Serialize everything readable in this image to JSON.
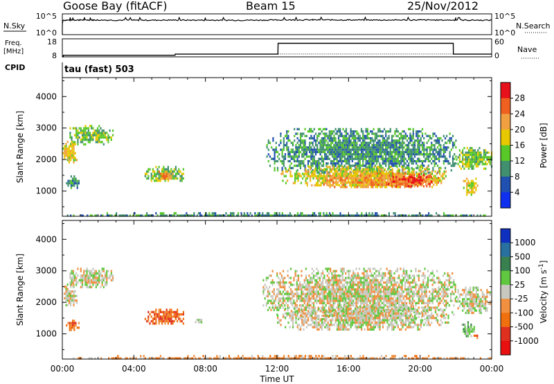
{
  "header": {
    "station": "Goose Bay (fitACF)",
    "beam": "Beam 15",
    "date": "25/Nov/2012"
  },
  "chart_data": [
    {
      "type": "line",
      "title": "",
      "left_label": "N.Sky",
      "right_label": "N.Search",
      "left_ticks": [
        "10^5",
        "10^0"
      ],
      "right_ticks": [
        "10^5",
        "10^0"
      ],
      "scale": "log",
      "ylim": [
        1,
        100000
      ],
      "series": [
        {
          "values_note": "",
          "x": [
            0,
            0.05,
            0.06,
            1,
            2,
            4,
            6,
            8,
            10,
            12,
            14,
            16,
            18,
            20,
            22,
            24
          ],
          "y": [
            1,
            3000,
            3000,
            3500,
            3300,
            3000,
            3200,
            3100,
            3000,
            3400,
            3600,
            3500,
            3300,
            3400,
            3200,
            3000
          ]
        }
      ]
    },
    {
      "type": "line",
      "left_label": "Freq.",
      "left_label_units": "[MHz]",
      "right_label": "Nave",
      "left_ticks": [
        "18",
        "8"
      ],
      "right_ticks": [
        "60",
        "0"
      ],
      "ylim": [
        8,
        18
      ],
      "series": [
        {
          "x": [
            0,
            0.05,
            0.06,
            6.3,
            6.31,
            12.05,
            12.06,
            21.85,
            21.86,
            24
          ],
          "y": [
            8,
            8,
            8.9,
            8.9,
            9.5,
            9.5,
            15.5,
            15.5,
            9.5,
            9.5
          ]
        }
      ]
    },
    {
      "type": "heatmap",
      "cpid_label": "CPID",
      "cpid_value": "tau (fast) 503",
      "ylabel": "Slant Range [km]",
      "ylim": [
        200,
        4600
      ],
      "yticks": [
        1000,
        2000,
        3000,
        4000
      ],
      "xlim": [
        0,
        24
      ],
      "colorbar_label": "Power [dB]",
      "colorbar_ticks": [
        "28",
        "24",
        "20",
        "16",
        "12",
        "8",
        "4"
      ],
      "colorbar_colors": [
        "#e8101a",
        "#f06020",
        "#f0a040",
        "#e8c800",
        "#58c828",
        "#409070",
        "#2050b0",
        "#1030f0"
      ],
      "regions": [
        {
          "x0": 0.0,
          "x1": 0.8,
          "y0": 1900,
          "y1": 2600,
          "level": 4
        },
        {
          "x0": 0.4,
          "x1": 2.8,
          "y0": 2500,
          "y1": 3100,
          "level": 3
        },
        {
          "x0": 0.2,
          "x1": 0.9,
          "y0": 1100,
          "y1": 1500,
          "level": 2
        },
        {
          "x0": 4.6,
          "x1": 6.8,
          "y0": 1300,
          "y1": 1800,
          "level": 3
        },
        {
          "x0": 5.2,
          "x1": 6.2,
          "y0": 1400,
          "y1": 1650,
          "level": 5
        },
        {
          "x0": 11.4,
          "x1": 22.0,
          "y0": 1600,
          "y1": 3000,
          "level": 2
        },
        {
          "x0": 12.2,
          "x1": 21.4,
          "y0": 1200,
          "y1": 1800,
          "level": 4
        },
        {
          "x0": 14.5,
          "x1": 21.0,
          "y0": 1100,
          "y1": 1600,
          "level": 5
        },
        {
          "x0": 18.2,
          "x1": 20.6,
          "y0": 1150,
          "y1": 1550,
          "level": 6
        },
        {
          "x0": 19.4,
          "x1": 20.1,
          "y0": 1250,
          "y1": 1450,
          "level": 7
        },
        {
          "x0": 22.0,
          "x1": 24.0,
          "y0": 1700,
          "y1": 2400,
          "level": 3
        },
        {
          "x0": 22.4,
          "x1": 23.2,
          "y0": 900,
          "y1": 1500,
          "level": 4
        },
        {
          "x0": 0.0,
          "x1": 24.0,
          "y0": 200,
          "y1": 330,
          "level": 2
        }
      ]
    },
    {
      "type": "heatmap",
      "ylabel": "Slant Range [km]",
      "ylim": [
        200,
        4600
      ],
      "yticks": [
        1000,
        2000,
        3000,
        4000
      ],
      "xlabel": "Time UT",
      "xlim": [
        0,
        24
      ],
      "xticks": [
        "00:00",
        "04:00",
        "08:00",
        "12:00",
        "16:00",
        "20:00",
        "00:00"
      ],
      "colorbar_label": "Velocity [m s⁻¹]",
      "colorbar_label_text": "Velocity",
      "colorbar_label_units": "[m s",
      "colorbar_label_sup": "-1",
      "colorbar_label_close": "]",
      "colorbar_ticks": [
        "1000",
        "500",
        "100",
        "25",
        "-25",
        "-100",
        "-500",
        "-1000"
      ],
      "colorbar_colors": [
        "#1030c0",
        "#2870a0",
        "#388050",
        "#60c840",
        "#c8c8c0",
        "#f09040",
        "#f07010",
        "#e03020",
        "#e81010"
      ],
      "regions": [
        {
          "x0": 0.0,
          "x1": 0.8,
          "y0": 1900,
          "y1": 2600,
          "level": 4
        },
        {
          "x0": 0.4,
          "x1": 2.8,
          "y0": 2500,
          "y1": 3100,
          "level": 4
        },
        {
          "x0": 0.2,
          "x1": 0.9,
          "y0": 1150,
          "y1": 1450,
          "level": 6
        },
        {
          "x0": 4.6,
          "x1": 6.8,
          "y0": 1300,
          "y1": 1800,
          "level": 6
        },
        {
          "x0": 7.4,
          "x1": 7.9,
          "y0": 1350,
          "y1": 1550,
          "level": 4
        },
        {
          "x0": 11.2,
          "x1": 22.0,
          "y0": 1500,
          "y1": 3100,
          "level": 4
        },
        {
          "x0": 12.0,
          "x1": 21.6,
          "y0": 1150,
          "y1": 1900,
          "level": 4
        },
        {
          "x0": 22.0,
          "x1": 24.0,
          "y0": 1700,
          "y1": 2500,
          "level": 4
        },
        {
          "x0": 22.3,
          "x1": 23.0,
          "y0": 900,
          "y1": 1400,
          "level": 3
        },
        {
          "x0": 22.9,
          "x1": 23.2,
          "y0": 900,
          "y1": 1050,
          "level": 6
        },
        {
          "x0": 0.0,
          "x1": 24.0,
          "y0": 200,
          "y1": 330,
          "level": 5
        }
      ]
    }
  ]
}
